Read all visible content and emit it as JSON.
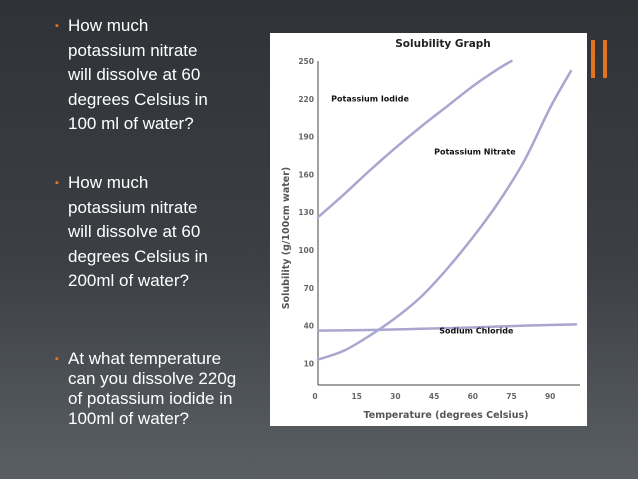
{
  "slide": {
    "questions": [
      {
        "marker": "▪",
        "lines": [
          "How much",
          "potassium nitrate",
          "will dissolve at 60",
          "degrees Celsius in",
          "100 ml of water?"
        ]
      },
      {
        "marker": "▪",
        "lines": [
          "How much",
          "potassium nitrate",
          "will dissolve at 60",
          "degrees Celsius in",
          "200ml of water?"
        ]
      },
      {
        "marker": "▪",
        "lines": [
          "At what temperature",
          "can you dissolve 220g",
          "of potassium iodide in",
          "100ml of water?"
        ]
      }
    ],
    "colors": {
      "accent": "#e2731f",
      "series": "#a9a6cf"
    }
  },
  "chart_data": {
    "type": "line",
    "title": "Solubility Graph",
    "xlabel": "Temperature (degrees Celsius)",
    "ylabel": "Solubility (g/100cm  water)",
    "xticks": [
      0,
      15,
      30,
      45,
      60,
      75,
      90
    ],
    "yticks": [
      10,
      40,
      70,
      100,
      130,
      160,
      190,
      220,
      250
    ],
    "xlim": [
      0,
      100
    ],
    "ylim": [
      0,
      250
    ],
    "grid": false,
    "series": [
      {
        "name": "Potassium Iodide",
        "x": [
          0,
          10,
          20,
          30,
          40,
          50,
          60,
          70,
          75
        ],
        "y": [
          126,
          144,
          163,
          181,
          198,
          214,
          230,
          244,
          250
        ]
      },
      {
        "name": "Potassium Nitrate",
        "x": [
          0,
          10,
          20,
          30,
          40,
          50,
          60,
          70,
          80,
          90,
          98
        ],
        "y": [
          13,
          20,
          32,
          46,
          63,
          85,
          110,
          138,
          171,
          213,
          242
        ]
      },
      {
        "name": "Sodium Chloride",
        "x": [
          0,
          20,
          40,
          60,
          80,
          100
        ],
        "y": [
          36,
          36.5,
          37.5,
          38.5,
          40,
          41
        ]
      }
    ]
  }
}
